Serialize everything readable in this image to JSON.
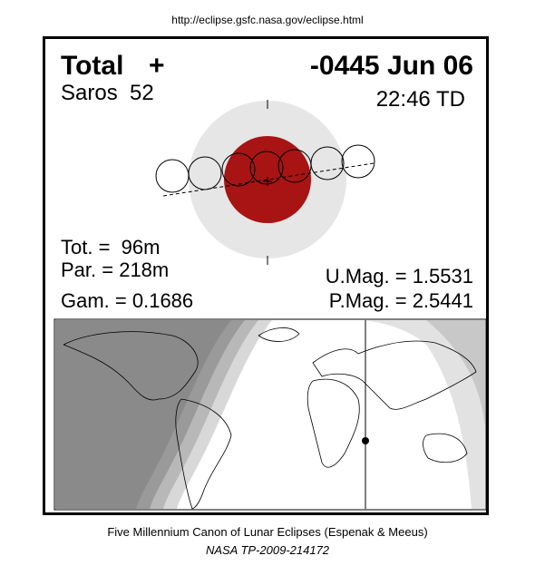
{
  "header": {
    "url": "http://eclipse.gsfc.nasa.gov/eclipse.html"
  },
  "eclipse": {
    "type": "Total",
    "symbol": "+",
    "date": "-0445 Jun 06",
    "saros": "Saros  52",
    "time": "22:46 TD",
    "total_duration": "Tot. =  96m",
    "partial_duration": "Par. = 218m",
    "gamma": "Gam. = 0.1686",
    "umbral_magnitude": "U.Mag. = 1.5531",
    "penumbral_magnitude": "P.Mag. = 2.5441"
  },
  "footer": {
    "line1": "Five Millennium Canon of Lunar Eclipses (Espenak & Meeus)",
    "line2": "NASA TP-2009-214172"
  }
}
